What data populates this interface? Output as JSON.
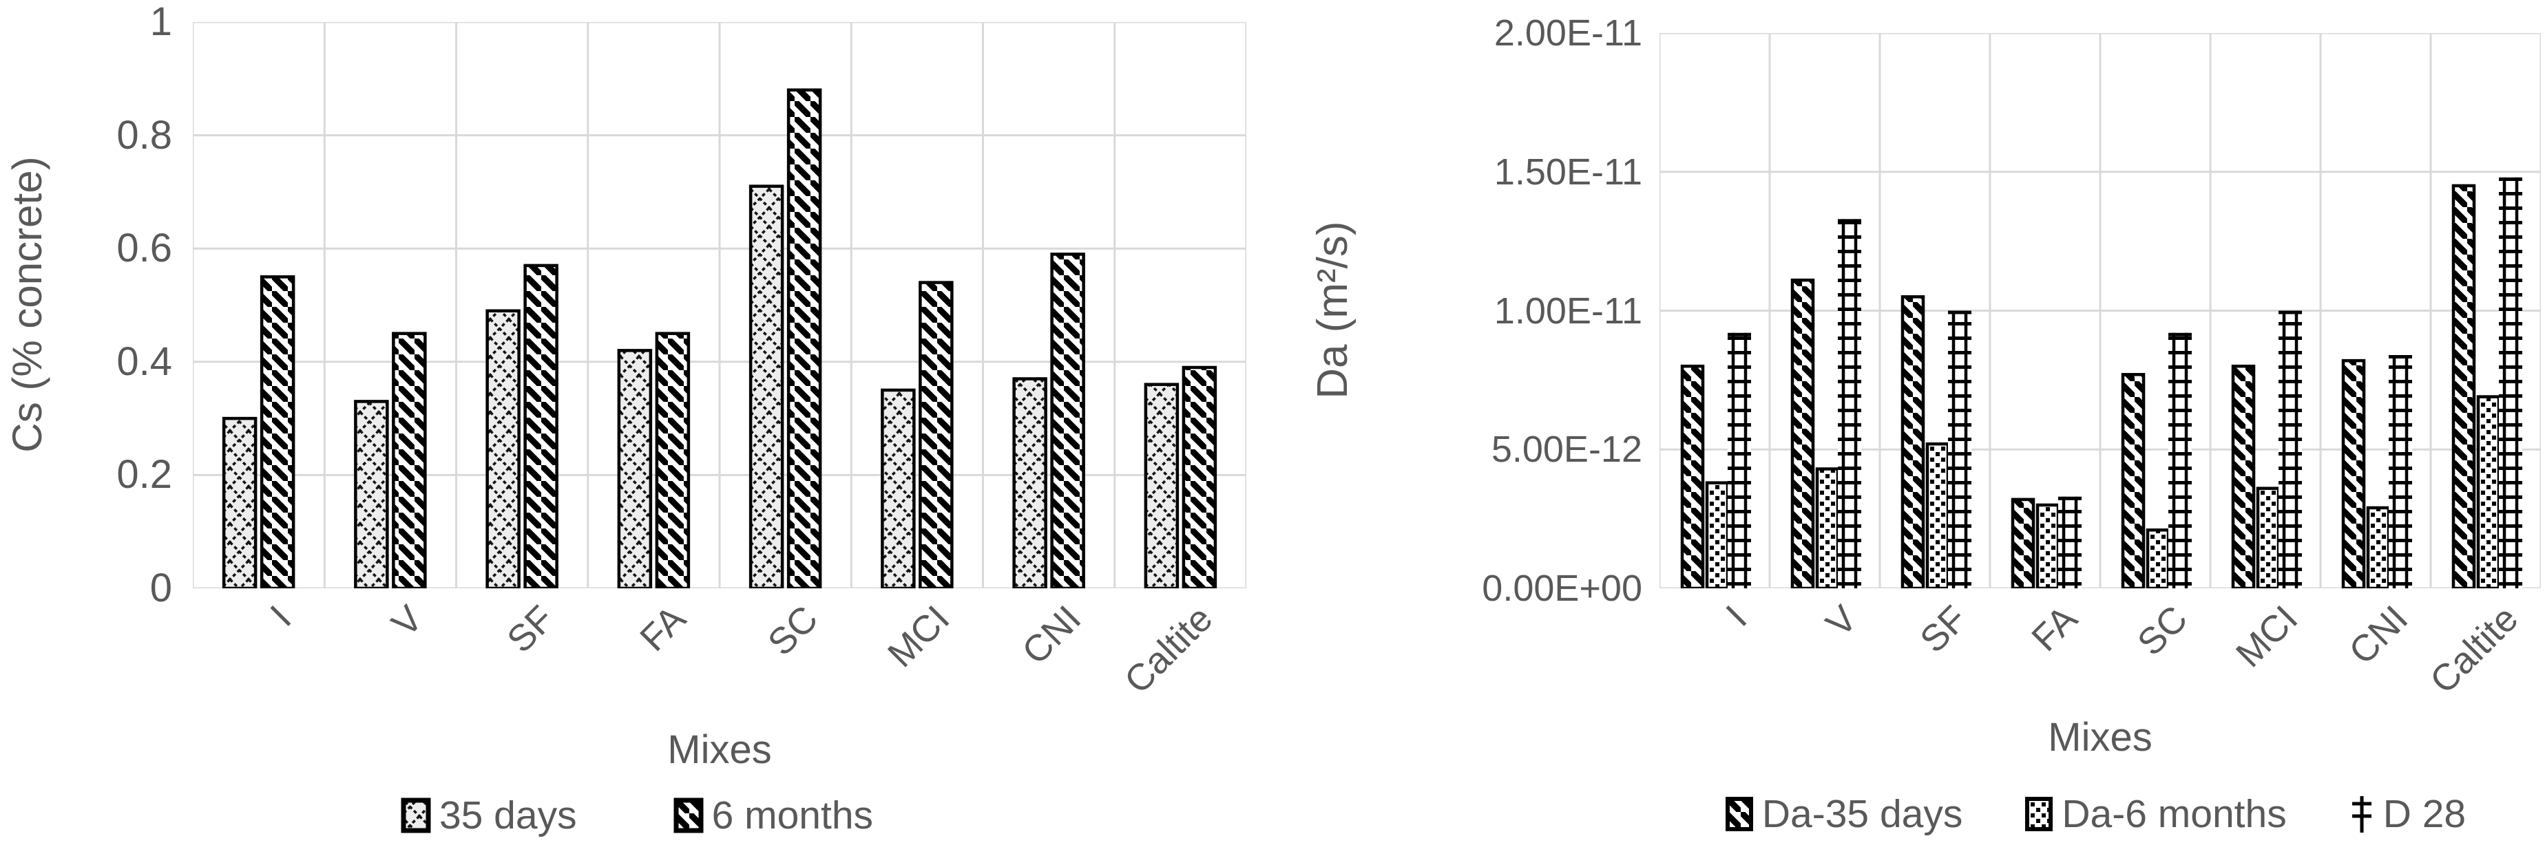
{
  "figure": {
    "background": "#ffffff",
    "text_color": "#595959",
    "grid_color": "#d9d9d9",
    "bar_outline": "#000000"
  },
  "chart_data": [
    {
      "type": "bar",
      "title": "",
      "xlabel": "Mixes",
      "ylabel": "Cs (% concrete)",
      "categories": [
        "I",
        "V",
        "SF",
        "FA",
        "SC",
        "MCI",
        "CNI",
        "Caltite"
      ],
      "series": [
        {
          "name": "35 days",
          "pattern": "crosshatch",
          "values": [
            0.3,
            0.33,
            0.49,
            0.42,
            0.71,
            0.35,
            0.37,
            0.36
          ]
        },
        {
          "name": "6 months",
          "pattern": "diagonal",
          "values": [
            0.55,
            0.45,
            0.57,
            0.45,
            0.88,
            0.54,
            0.59,
            0.39
          ]
        }
      ],
      "ylim": [
        0,
        1
      ],
      "yticks": [
        1,
        0.8,
        0.6,
        0.4,
        0.2,
        0
      ],
      "ytick_labels": [
        "1",
        "0.8",
        "0.6",
        "0.4",
        "0.2",
        "0"
      ],
      "grid": true,
      "legend_position": "bottom"
    },
    {
      "type": "bar",
      "title": "",
      "xlabel": "Mixes",
      "ylabel": "Da (m²/s)",
      "categories": [
        "I",
        "V",
        "SF",
        "FA",
        "SC",
        "MCI",
        "CNI",
        "Caltite"
      ],
      "series": [
        {
          "name": "Da-35 days",
          "pattern": "diagonal",
          "values": [
            8e-12,
            1.11e-11,
            1.05e-11,
            3.2e-12,
            7.7e-12,
            8e-12,
            8.2e-12,
            1.45e-11
          ]
        },
        {
          "name": "Da-6 months",
          "pattern": "dots",
          "values": [
            3.8e-12,
            4.3e-12,
            5.2e-12,
            3e-12,
            2.1e-12,
            3.6e-12,
            2.9e-12,
            6.9e-12
          ]
        },
        {
          "name": "D 28",
          "pattern": "ladder",
          "values": [
            9.2e-12,
            1.33e-11,
            1e-11,
            3.3e-12,
            9.2e-12,
            1e-11,
            8.4e-12,
            1.48e-11
          ]
        }
      ],
      "ylim": [
        0,
        2e-11
      ],
      "yticks": [
        2e-11,
        1.5e-11,
        1e-11,
        5e-12,
        0
      ],
      "ytick_labels": [
        "2.00E-11",
        "1.50E-11",
        "1.00E-11",
        "5.00E-12",
        "0.00E+00"
      ],
      "grid": true,
      "legend_position": "bottom"
    }
  ]
}
